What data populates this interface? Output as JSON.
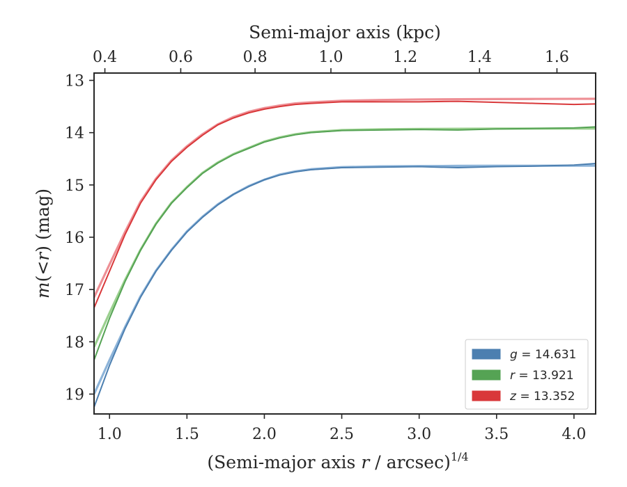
{
  "chart_data": {
    "type": "line",
    "xlabel": "(Semi-major axis r / arcsec)^{1/4}",
    "xlabel_parts": [
      "(Semi-major axis ",
      "r",
      " / arcsec)",
      "1/4"
    ],
    "ylabel": "m(<r) (mag)",
    "ylabel_parts": [
      "m",
      "(<",
      "r",
      ")",
      " (mag)"
    ],
    "top_xlabel": "Semi-major axis (kpc)",
    "xlim": [
      0.9,
      4.14
    ],
    "ylim": [
      19.38,
      12.86
    ],
    "y_inverted": true,
    "x_ticks": [
      1.0,
      1.5,
      2.0,
      2.5,
      3.0,
      3.5,
      4.0
    ],
    "x_tick_labels": [
      "1.0",
      "1.5",
      "2.0",
      "2.5",
      "3.0",
      "3.5",
      "4.0"
    ],
    "y_ticks": [
      13,
      14,
      15,
      16,
      17,
      18,
      19
    ],
    "y_tick_labels": [
      "13",
      "14",
      "15",
      "16",
      "17",
      "18",
      "19"
    ],
    "top_ticks": [
      0.4,
      0.6,
      0.8,
      1.0,
      1.2,
      1.4,
      1.6
    ],
    "top_tick_labels": [
      "0.4",
      "0.6",
      "0.8",
      "1.0",
      "1.2",
      "1.4",
      "1.6"
    ],
    "top_tick_positions_x": [
      0.97,
      1.46,
      1.94,
      2.43,
      2.91,
      3.39,
      3.89
    ],
    "grid": false,
    "legend_position": "lower-right",
    "series": [
      {
        "name": "g = 14.631",
        "legend_var": "g",
        "legend_value": "14.631",
        "color": "#4c7fb0",
        "model_color": "#8db4d9",
        "asymptote": 14.631,
        "x": [
          0.9,
          1.0,
          1.1,
          1.2,
          1.3,
          1.4,
          1.5,
          1.6,
          1.7,
          1.8,
          1.9,
          2.0,
          2.1,
          2.2,
          2.3,
          2.5,
          2.75,
          3.0,
          3.25,
          3.5,
          3.75,
          4.0,
          4.14
        ],
        "y": [
          19.25,
          18.45,
          17.75,
          17.15,
          16.65,
          16.25,
          15.9,
          15.62,
          15.38,
          15.18,
          15.03,
          14.9,
          14.81,
          14.75,
          14.71,
          14.67,
          14.66,
          14.65,
          14.67,
          14.65,
          14.64,
          14.62,
          14.59
        ],
        "model_y": [
          19.0,
          18.35,
          17.72,
          17.13,
          16.64,
          16.24,
          15.89,
          15.61,
          15.37,
          15.18,
          15.02,
          14.9,
          14.8,
          14.74,
          14.7,
          14.66,
          14.645,
          14.64,
          14.635,
          14.633,
          14.632,
          14.631,
          14.631
        ]
      },
      {
        "name": "r = 13.921",
        "legend_var": "r",
        "legend_value": "13.921",
        "color": "#55a354",
        "model_color": "#9bd08f",
        "asymptote": 13.921,
        "x": [
          0.9,
          1.0,
          1.1,
          1.2,
          1.3,
          1.4,
          1.5,
          1.6,
          1.7,
          1.8,
          1.9,
          2.0,
          2.1,
          2.2,
          2.3,
          2.5,
          2.75,
          3.0,
          3.25,
          3.5,
          3.75,
          4.0,
          4.14
        ],
        "y": [
          18.35,
          17.55,
          16.85,
          16.25,
          15.75,
          15.35,
          15.05,
          14.78,
          14.58,
          14.42,
          14.3,
          14.18,
          14.1,
          14.04,
          14.0,
          13.96,
          13.95,
          13.94,
          13.95,
          13.93,
          13.92,
          13.91,
          13.89
        ],
        "model_y": [
          18.1,
          17.45,
          16.82,
          16.24,
          15.74,
          15.34,
          15.04,
          14.77,
          14.57,
          14.41,
          14.29,
          14.17,
          14.09,
          14.03,
          13.99,
          13.95,
          13.935,
          13.93,
          13.926,
          13.923,
          13.922,
          13.921,
          13.921
        ]
      },
      {
        "name": "z = 13.352",
        "legend_var": "z",
        "legend_value": "13.352",
        "color": "#d9383a",
        "model_color": "#ee8f95",
        "asymptote": 13.352,
        "x": [
          0.9,
          1.0,
          1.1,
          1.2,
          1.3,
          1.4,
          1.5,
          1.6,
          1.7,
          1.8,
          1.9,
          2.0,
          2.1,
          2.2,
          2.3,
          2.5,
          2.75,
          3.0,
          3.25,
          3.5,
          3.75,
          4.0,
          4.14
        ],
        "y": [
          17.35,
          16.65,
          15.95,
          15.35,
          14.9,
          14.55,
          14.28,
          14.05,
          13.85,
          13.72,
          13.62,
          13.55,
          13.5,
          13.46,
          13.44,
          13.41,
          13.41,
          13.41,
          13.4,
          13.42,
          13.44,
          13.46,
          13.45
        ],
        "model_y": [
          17.15,
          16.52,
          15.9,
          15.32,
          14.88,
          14.53,
          14.26,
          14.03,
          13.84,
          13.7,
          13.6,
          13.53,
          13.48,
          13.44,
          13.42,
          13.39,
          13.375,
          13.365,
          13.36,
          13.357,
          13.355,
          13.353,
          13.352
        ]
      }
    ]
  }
}
